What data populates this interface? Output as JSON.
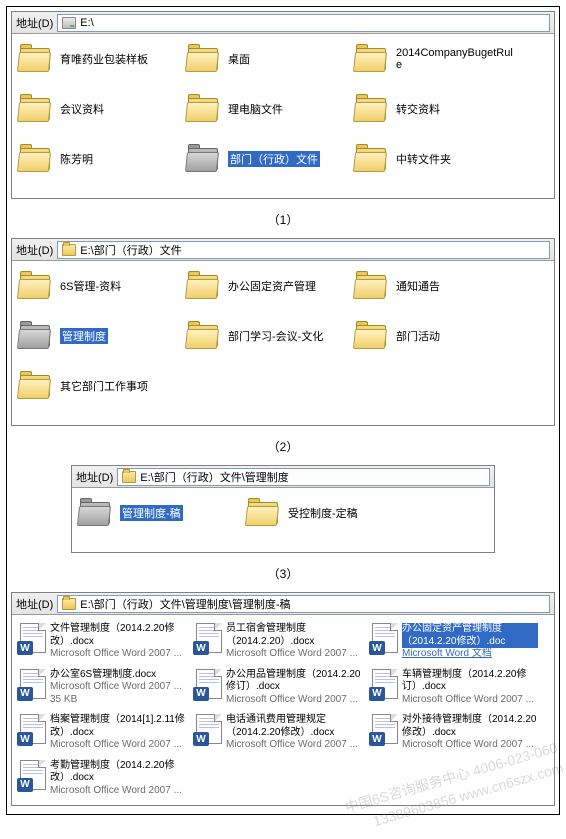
{
  "labels": {
    "addr": "地址(D)",
    "sep1": "（1）",
    "sep2": "（2）",
    "sep3": "（3）"
  },
  "panels": [
    {
      "path": "E:\\",
      "pathIcon": "drive",
      "rows": [
        [
          {
            "label": "育唯药业包装样板",
            "grey": false,
            "sel": false
          },
          {
            "label": "桌面",
            "grey": false,
            "sel": false
          },
          {
            "label": "2014CompanyBugetRule",
            "grey": false,
            "sel": false
          }
        ],
        [
          {
            "label": "会议资料",
            "grey": false,
            "sel": false
          },
          {
            "label": "理电脑文件",
            "grey": false,
            "sel": false
          },
          {
            "label": "转交资料",
            "grey": false,
            "sel": false
          }
        ],
        [
          {
            "label": "陈芳明",
            "grey": false,
            "sel": false
          },
          {
            "label": "部门（行政）文件",
            "grey": true,
            "sel": true
          },
          {
            "label": "中转文件夹",
            "grey": false,
            "sel": false
          }
        ]
      ]
    },
    {
      "path": "E:\\部门（行政）文件",
      "pathIcon": "folder",
      "rows": [
        [
          {
            "label": "6S管理-资料",
            "grey": false,
            "sel": false
          },
          {
            "label": "办公固定资产管理",
            "grey": false,
            "sel": false
          },
          {
            "label": "通知通告",
            "grey": false,
            "sel": false
          }
        ],
        [
          {
            "label": "管理制度",
            "grey": true,
            "sel": true
          },
          {
            "label": "部门学习-会议-文化",
            "grey": false,
            "sel": false
          },
          {
            "label": "部门活动",
            "grey": false,
            "sel": false
          }
        ],
        [
          {
            "label": "其它部门工作事项",
            "grey": false,
            "sel": false
          }
        ]
      ]
    },
    {
      "path": "E:\\部门（行政）文件\\管理制度",
      "pathIcon": "folder",
      "indent": true,
      "rows": [
        [
          {
            "label": "管理制度-稿",
            "grey": true,
            "sel": true
          },
          {
            "label": "受控制度-定稿",
            "grey": false,
            "sel": false
          }
        ]
      ]
    }
  ],
  "panel4": {
    "path": "E:\\部门（行政）文件\\管理制度\\管理制度-稿",
    "pathIcon": "folder",
    "metaWord": "Microsoft Office Word 2007 ...",
    "metaSel": "Microsoft Word 文档",
    "files": [
      {
        "name": "文件管理制度（2014.2.20修改）.docx",
        "sel": false,
        "meta": "word"
      },
      {
        "name": "员工宿舍管理制度（2014.2.20）.docx",
        "sel": false,
        "meta": "word"
      },
      {
        "name": "办公固定资产管理制度（2014.2.20修改）.doc",
        "sel": true,
        "meta": "sel"
      },
      {
        "name": "办公室6S管理制度.docx",
        "sel": false,
        "meta": "size",
        "size": "35 KB"
      },
      {
        "name": "办公用品管理制度（2014.2.20修订）.docx",
        "sel": false,
        "meta": "word"
      },
      {
        "name": "车辆管理制度（2014.2.20修订）.docx",
        "sel": false,
        "meta": "word"
      },
      {
        "name": "档案管理制度（2014[1].2.11修改）.docx",
        "sel": false,
        "meta": "word"
      },
      {
        "name": "电话通讯费用管理规定（2014.2.20修改）.docx",
        "sel": false,
        "meta": "word"
      },
      {
        "name": "对外接待管理制度（2014.2.20修改）.docx",
        "sel": false,
        "meta": "word"
      },
      {
        "name": "考勤管理制度（2014.2.20修改）.docx",
        "sel": false,
        "meta": "word"
      }
    ]
  },
  "watermark": {
    "l1": "中国6S咨询服务中心 4006-023-060",
    "l2": "13389603856    www.cn6szx.com"
  },
  "colors": {
    "selection": "#316ac5",
    "folderYellow": "#f0cf6a",
    "folderGrey": "#a0a0a0",
    "wordBlue": "#2b579a"
  }
}
